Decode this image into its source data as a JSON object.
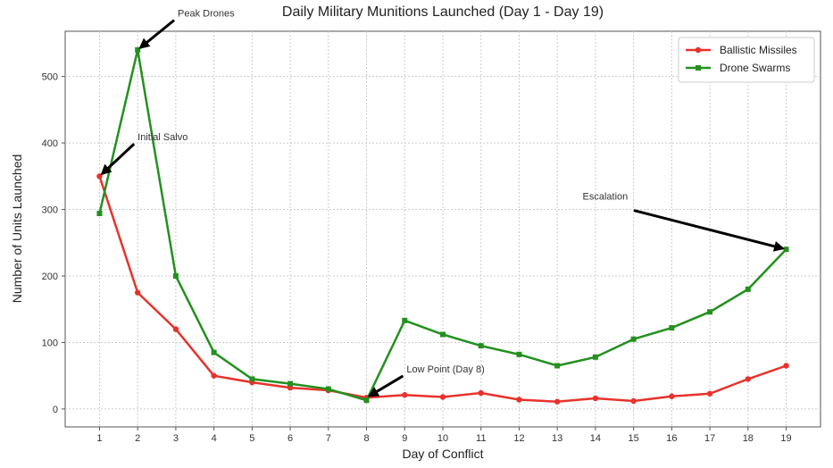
{
  "chart_data": {
    "type": "line",
    "title": "Daily Military Munitions Launched (Day 1 - Day 19)",
    "xlabel": "Day of Conflict",
    "ylabel": "Number of Units Launched",
    "x": [
      1,
      2,
      3,
      4,
      5,
      6,
      7,
      8,
      9,
      10,
      11,
      12,
      13,
      14,
      15,
      16,
      17,
      18,
      19
    ],
    "xlim": [
      0.1,
      19.9
    ],
    "ylim": [
      -27,
      568
    ],
    "yticks": [
      0,
      100,
      200,
      300,
      400,
      500
    ],
    "grid": true,
    "legend_position": "top-right",
    "series": [
      {
        "name": "Ballistic Missiles",
        "color": "#e8322b",
        "marker": "circle",
        "values": [
          350,
          175,
          120,
          50,
          40,
          32,
          28,
          17,
          21,
          18,
          24,
          14,
          11,
          16,
          12,
          19,
          23,
          45,
          65
        ]
      },
      {
        "name": "Drone Swarms",
        "color": "#23901f",
        "marker": "square",
        "values": [
          294,
          540,
          200,
          85,
          45,
          38,
          30,
          13,
          133,
          112,
          95,
          82,
          65,
          78,
          105,
          122,
          146,
          180,
          240
        ]
      }
    ],
    "annotations": [
      {
        "text": "Peak Drones",
        "point": [
          2,
          540
        ],
        "text_at": [
          3.05,
          590
        ]
      },
      {
        "text": "Initial Salvo",
        "point": [
          1,
          350
        ],
        "text_at": [
          2.0,
          404
        ]
      },
      {
        "text": "Low Point (Day 8)",
        "point": [
          8,
          17
        ],
        "text_at": [
          9.05,
          55
        ]
      },
      {
        "text": "Escalation",
        "point": [
          19,
          240
        ],
        "text_at": [
          15.1,
          304
        ]
      }
    ]
  }
}
